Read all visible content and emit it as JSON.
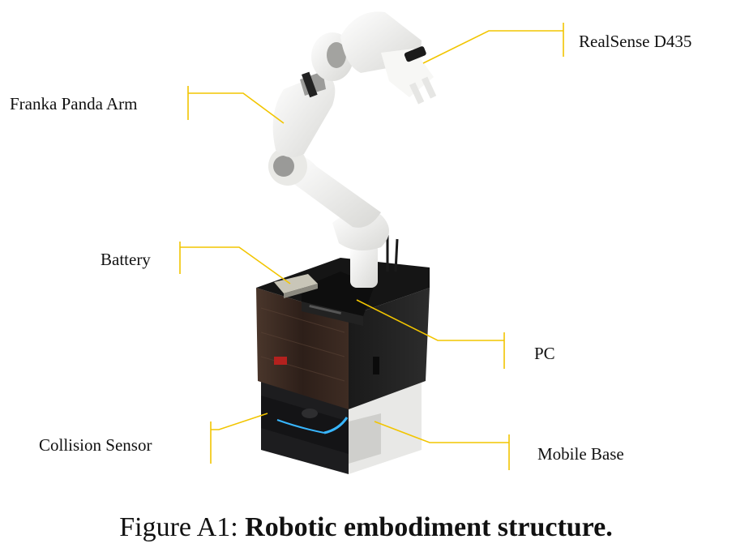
{
  "labels": {
    "realsense": "RealSense D435",
    "franka": "Franka Panda Arm",
    "battery": "Battery",
    "pc": "PC",
    "collision": "Collision Sensor",
    "mobile_base": "Mobile Base"
  },
  "caption": {
    "prefix": "Figure A1:",
    "title": "Robotic embodiment structure."
  },
  "colors": {
    "leader_line": "#f2c500",
    "arm_white": "#f4f4f2",
    "arm_shadow": "#cfcfcc",
    "joint_grey": "#8a8a8a",
    "wood_dark": "#3a2a22",
    "base_black": "#1c1c1e",
    "base_white": "#e9e9e7",
    "led_blue": "#38b6ff"
  }
}
